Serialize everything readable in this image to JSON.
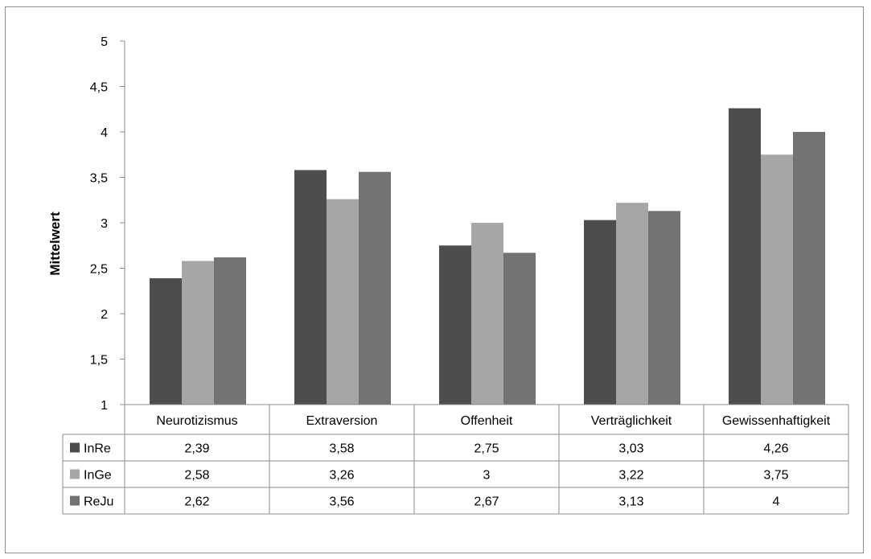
{
  "chart_data": {
    "type": "bar",
    "title": "",
    "xlabel": "",
    "ylabel": "Mittelwert",
    "ylim": [
      1,
      5
    ],
    "yticks": [
      "1",
      "1,5",
      "2",
      "2,5",
      "3",
      "3,5",
      "4",
      "4,5",
      "5"
    ],
    "grid": false,
    "legend": "data-table",
    "categories": [
      "Neurotizismus",
      "Extraversion",
      "Offenheit",
      "Verträglichkeit",
      "Gewissenhaftigkeit"
    ],
    "series": [
      {
        "name": "InRe",
        "color": "#4d4d4d",
        "values": [
          2.39,
          3.58,
          2.75,
          3.03,
          4.26
        ],
        "labels": [
          "2,39",
          "3,58",
          "2,75",
          "3,03",
          "4,26"
        ]
      },
      {
        "name": "InGe",
        "color": "#a6a6a6",
        "values": [
          2.58,
          3.26,
          3,
          3.22,
          3.75
        ],
        "labels": [
          "2,58",
          "3,26",
          "3",
          "3,22",
          "3,75"
        ]
      },
      {
        "name": "ReJu",
        "color": "#737373",
        "values": [
          2.62,
          3.56,
          2.67,
          3.13,
          4
        ],
        "labels": [
          "2,62",
          "3,56",
          "2,67",
          "3,13",
          "4"
        ]
      }
    ]
  }
}
